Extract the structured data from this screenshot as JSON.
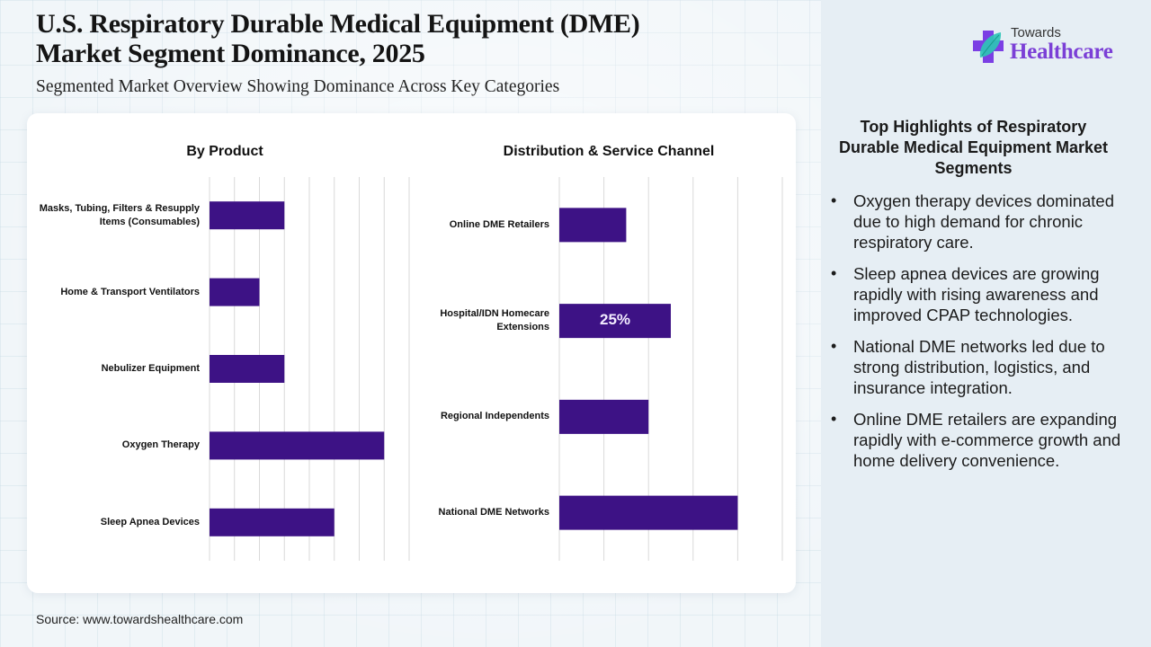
{
  "header": {
    "title_line1": "U.S. Respiratory Durable Medical Equipment (DME)",
    "title_line2": "Market Segment Dominance, 2025",
    "subtitle": "Segmented Market Overview Showing Dominance Across Key Categories"
  },
  "logo": {
    "top": "Towards",
    "bottom": "Healthcare",
    "icon": "medical-cross-leaf-icon"
  },
  "colors": {
    "bar": "#3d1285",
    "grid": "#d9d9d9",
    "brand_purple": "#7b3fd6",
    "brand_teal": "#2ec4b6"
  },
  "chart_data": [
    {
      "type": "bar",
      "orientation": "horizontal",
      "title": "By Product",
      "categories": [
        "Masks, Tubing, Filters & Resupply Items (Consumables)",
        "Home & Transport Ventilators",
        "Nebulizer Equipment",
        "Oxygen Therapy",
        "Sleep Apnea Devices"
      ],
      "values": [
        15,
        10,
        15,
        35,
        25
      ],
      "unit": "%",
      "data_labels": [
        "",
        "",
        "",
        "",
        ""
      ],
      "xlim": [
        0,
        40
      ],
      "grid_step": 5,
      "grid": true,
      "xlabel": "",
      "ylabel": ""
    },
    {
      "type": "bar",
      "orientation": "horizontal",
      "title": "Distribution & Service Channel",
      "categories": [
        "Online DME Retailers",
        "Hospital/IDN Homecare Extensions",
        "Regional Independents",
        "National DME Networks"
      ],
      "values": [
        15,
        25,
        20,
        40
      ],
      "unit": "%",
      "data_labels": [
        "",
        "25%",
        "",
        ""
      ],
      "xlim": [
        0,
        50
      ],
      "grid_step": 10,
      "grid": true,
      "xlabel": "",
      "ylabel": ""
    }
  ],
  "highlights": {
    "title": "Top Highlights of Respiratory Durable Medical Equipment Market Segments",
    "items": [
      "Oxygen therapy devices dominated due to high demand for chronic respiratory care.",
      "Sleep apnea devices are growing rapidly with rising awareness and improved CPAP technologies.",
      "National DME networks led due to strong distribution, logistics, and insurance integration.",
      "Online DME retailers are expanding rapidly with e-commerce growth and home delivery convenience."
    ],
    "bullet": "•"
  },
  "footer": {
    "source": "Source: www.towardshealthcare.com"
  }
}
